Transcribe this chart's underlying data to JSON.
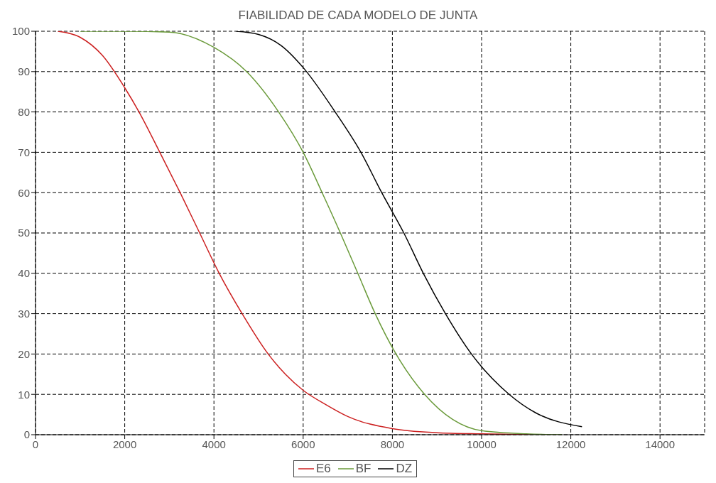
{
  "chart_data": {
    "type": "line",
    "title": "FIABILIDAD  DE CADA MODELO DE JUNTA",
    "series": [
      {
        "name": "E6",
        "color": "#cc2020",
        "x": [
          500,
          1000,
          1500,
          2000,
          2320,
          2786,
          3242,
          3680,
          4118,
          4632,
          5216,
          5600,
          6000,
          6500,
          7000,
          8000,
          9000,
          10000,
          11200
        ],
        "values": [
          100,
          98.5,
          94,
          86,
          80,
          70,
          60,
          50,
          40,
          30,
          20,
          15,
          11,
          7.5,
          4.5,
          1.5,
          0.5,
          0.2,
          0
        ]
      },
      {
        "name": "BF",
        "color": "#6a9a3a",
        "x": [
          1000,
          2000,
          3000,
          4000,
          4731,
          5450,
          6000,
          6425,
          6834,
          7225,
          7615,
          8082,
          8723,
          10000,
          11000,
          11800
        ],
        "values": [
          100,
          100,
          99.8,
          96,
          90,
          80,
          70,
          60,
          50,
          40,
          30,
          20,
          10,
          1,
          0.2,
          0
        ]
      },
      {
        "name": "DZ",
        "color": "#000000",
        "x": [
          4500,
          5000,
          5500,
          6000,
          6717,
          7294,
          7761,
          8257,
          8694,
          9190,
          9773,
          10618,
          11200,
          12250
        ],
        "values": [
          100,
          99.2,
          96.5,
          91,
          80,
          70,
          60,
          50,
          40,
          30,
          20,
          10,
          5.5,
          2
        ]
      }
    ],
    "xlim": [
      0,
      15000
    ],
    "xticks": [
      0,
      2000,
      4000,
      6000,
      8000,
      10000,
      12000,
      14000
    ],
    "ylim": [
      0,
      100
    ],
    "yticks": [
      0,
      10,
      20,
      30,
      40,
      50,
      60,
      70,
      80,
      90,
      100
    ],
    "grid": true,
    "legend": "bottom",
    "marker": "none",
    "line_style": "solid"
  }
}
